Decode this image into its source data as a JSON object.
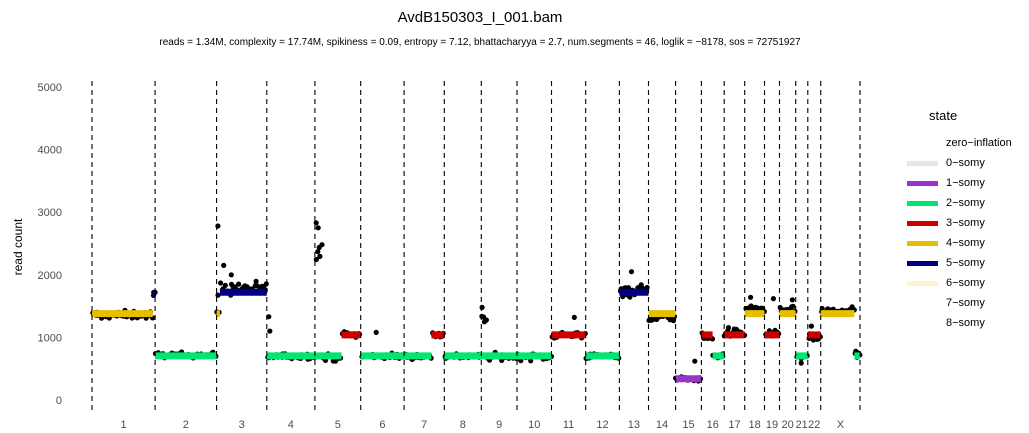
{
  "chart_data": {
    "type": "scatter",
    "title": "AvdB150303_I_001.bam",
    "subtitle": "reads = 1.34M, complexity = 17.74M,  spikiness = 0.09,  entropy = 7.12,  bhattacharyya = 2.7, num.segments = 46, loglik = −8178, sos = 72751927",
    "xlabel": "",
    "ylabel": "read count",
    "ylim": [
      0,
      5000
    ],
    "yticks": [
      "0",
      "1000",
      "2000",
      "3000",
      "4000",
      "5000"
    ],
    "grid": false,
    "legend_position": "right",
    "chromosomes": [
      {
        "name": "1",
        "start": 0,
        "end": 249
      },
      {
        "name": "2",
        "start": 249,
        "end": 492
      },
      {
        "name": "3",
        "start": 492,
        "end": 690
      },
      {
        "name": "4",
        "start": 690,
        "end": 880
      },
      {
        "name": "5",
        "start": 880,
        "end": 1061
      },
      {
        "name": "6",
        "start": 1061,
        "end": 1232
      },
      {
        "name": "7",
        "start": 1232,
        "end": 1391
      },
      {
        "name": "8",
        "start": 1391,
        "end": 1537
      },
      {
        "name": "9",
        "start": 1537,
        "end": 1678
      },
      {
        "name": "10",
        "start": 1678,
        "end": 1814
      },
      {
        "name": "11",
        "start": 1814,
        "end": 1949
      },
      {
        "name": "12",
        "start": 1949,
        "end": 2082
      },
      {
        "name": "13",
        "start": 2082,
        "end": 2197
      },
      {
        "name": "14",
        "start": 2197,
        "end": 2304
      },
      {
        "name": "15",
        "start": 2304,
        "end": 2406
      },
      {
        "name": "16",
        "start": 2406,
        "end": 2496
      },
      {
        "name": "17",
        "start": 2496,
        "end": 2577
      },
      {
        "name": "18",
        "start": 2577,
        "end": 2655
      },
      {
        "name": "19",
        "start": 2655,
        "end": 2714
      },
      {
        "name": "20",
        "start": 2714,
        "end": 2778
      },
      {
        "name": "21",
        "start": 2778,
        "end": 2826
      },
      {
        "name": "22",
        "start": 2826,
        "end": 2877
      },
      {
        "name": "X",
        "start": 2877,
        "end": 3032
      }
    ],
    "legend": {
      "title": "state",
      "items": [
        {
          "label": "zero−inflation",
          "color": null
        },
        {
          "label": "0−somy",
          "color": "#e6e6e6"
        },
        {
          "label": "1−somy",
          "color": "#9933cc"
        },
        {
          "label": "2−somy",
          "color": "#00e673"
        },
        {
          "label": "3−somy",
          "color": "#cc0000"
        },
        {
          "label": "4−somy",
          "color": "#e6bf00"
        },
        {
          "label": "5−somy",
          "color": "#000080"
        },
        {
          "label": "6−somy",
          "color": "#fff5cc"
        },
        {
          "label": "7−somy",
          "color": null
        },
        {
          "label": "8−somy",
          "color": null
        }
      ]
    },
    "segments": [
      {
        "start": 0,
        "end": 240,
        "value": 1380,
        "state": "4-somy",
        "color": "#e6bf00"
      },
      {
        "start": 240,
        "end": 249,
        "value": 1700,
        "state": "5-somy",
        "color": "#000080"
      },
      {
        "start": 249,
        "end": 492,
        "value": 705,
        "state": "2-somy",
        "color": "#00e673"
      },
      {
        "start": 492,
        "end": 505,
        "value": 1380,
        "state": "4-somy",
        "color": "#e6bf00"
      },
      {
        "start": 505,
        "end": 690,
        "value": 1720,
        "state": "5-somy",
        "color": "#000080"
      },
      {
        "start": 690,
        "end": 880,
        "value": 705,
        "state": "2-somy",
        "color": "#00e673"
      },
      {
        "start": 880,
        "end": 985,
        "value": 705,
        "state": "2-somy",
        "color": "#00e673"
      },
      {
        "start": 985,
        "end": 1061,
        "value": 1040,
        "state": "3-somy",
        "color": "#cc0000"
      },
      {
        "start": 1061,
        "end": 1232,
        "value": 705,
        "state": "2-somy",
        "color": "#00e673"
      },
      {
        "start": 1232,
        "end": 1340,
        "value": 705,
        "state": "2-somy",
        "color": "#00e673"
      },
      {
        "start": 1340,
        "end": 1391,
        "value": 1040,
        "state": "3-somy",
        "color": "#cc0000"
      },
      {
        "start": 1391,
        "end": 1537,
        "value": 705,
        "state": "2-somy",
        "color": "#00e673"
      },
      {
        "start": 1537,
        "end": 1678,
        "value": 705,
        "state": "2-somy",
        "color": "#00e673"
      },
      {
        "start": 1678,
        "end": 1814,
        "value": 705,
        "state": "2-somy",
        "color": "#00e673"
      },
      {
        "start": 1814,
        "end": 1949,
        "value": 1040,
        "state": "3-somy",
        "color": "#cc0000"
      },
      {
        "start": 1949,
        "end": 2082,
        "value": 705,
        "state": "2-somy",
        "color": "#00e673"
      },
      {
        "start": 2082,
        "end": 2197,
        "value": 1720,
        "state": "5-somy",
        "color": "#000080"
      },
      {
        "start": 2197,
        "end": 2304,
        "value": 1380,
        "state": "4-somy",
        "color": "#e6bf00"
      },
      {
        "start": 2304,
        "end": 2406,
        "value": 340,
        "state": "1-somy",
        "color": "#9933cc"
      },
      {
        "start": 2406,
        "end": 2450,
        "value": 1040,
        "state": "3-somy",
        "color": "#cc0000"
      },
      {
        "start": 2450,
        "end": 2496,
        "value": 705,
        "state": "2-somy",
        "color": "#00e673"
      },
      {
        "start": 2496,
        "end": 2577,
        "value": 1040,
        "state": "3-somy",
        "color": "#cc0000"
      },
      {
        "start": 2577,
        "end": 2655,
        "value": 1380,
        "state": "4-somy",
        "color": "#e6bf00"
      },
      {
        "start": 2655,
        "end": 2714,
        "value": 1040,
        "state": "3-somy",
        "color": "#cc0000"
      },
      {
        "start": 2714,
        "end": 2778,
        "value": 1380,
        "state": "4-somy",
        "color": "#e6bf00"
      },
      {
        "start": 2778,
        "end": 2826,
        "value": 705,
        "state": "2-somy",
        "color": "#00e673"
      },
      {
        "start": 2826,
        "end": 2877,
        "value": 1040,
        "state": "3-somy",
        "color": "#cc0000"
      },
      {
        "start": 2877,
        "end": 3010,
        "value": 1380,
        "state": "4-somy",
        "color": "#e6bf00"
      },
      {
        "start": 3010,
        "end": 3032,
        "value": 705,
        "state": "2-somy",
        "color": "#00e673"
      }
    ],
    "bins": [
      {
        "start": 0,
        "end": 240,
        "mean": 1360,
        "spread": 70
      },
      {
        "start": 240,
        "end": 249,
        "mean": 1680,
        "spread": 60
      },
      {
        "start": 249,
        "end": 492,
        "mean": 720,
        "spread": 45
      },
      {
        "start": 492,
        "end": 505,
        "mean": 1500,
        "spread": 500
      },
      {
        "start": 505,
        "end": 690,
        "mean": 1780,
        "spread": 110
      },
      {
        "start": 690,
        "end": 880,
        "mean": 700,
        "spread": 50
      },
      {
        "start": 880,
        "end": 910,
        "mean": 2400,
        "spread": 150
      },
      {
        "start": 910,
        "end": 985,
        "mean": 680,
        "spread": 60
      },
      {
        "start": 985,
        "end": 1061,
        "mean": 1040,
        "spread": 55
      },
      {
        "start": 1061,
        "end": 1232,
        "mean": 700,
        "spread": 50
      },
      {
        "start": 1232,
        "end": 1340,
        "mean": 700,
        "spread": 50
      },
      {
        "start": 1340,
        "end": 1391,
        "mean": 1040,
        "spread": 60
      },
      {
        "start": 1391,
        "end": 1537,
        "mean": 700,
        "spread": 50
      },
      {
        "start": 1537,
        "end": 1557,
        "mean": 1280,
        "spread": 90
      },
      {
        "start": 1557,
        "end": 1678,
        "mean": 690,
        "spread": 60
      },
      {
        "start": 1678,
        "end": 1814,
        "mean": 690,
        "spread": 55
      },
      {
        "start": 1814,
        "end": 1949,
        "mean": 1040,
        "spread": 70
      },
      {
        "start": 1949,
        "end": 2082,
        "mean": 700,
        "spread": 45
      },
      {
        "start": 2082,
        "end": 2197,
        "mean": 1750,
        "spread": 110
      },
      {
        "start": 2197,
        "end": 2304,
        "mean": 1320,
        "spread": 70
      },
      {
        "start": 2304,
        "end": 2406,
        "mean": 340,
        "spread": 40
      },
      {
        "start": 2406,
        "end": 2450,
        "mean": 1000,
        "spread": 70
      },
      {
        "start": 2450,
        "end": 2496,
        "mean": 700,
        "spread": 40
      },
      {
        "start": 2496,
        "end": 2577,
        "mean": 1080,
        "spread": 80
      },
      {
        "start": 2577,
        "end": 2655,
        "mean": 1450,
        "spread": 90
      },
      {
        "start": 2655,
        "end": 2714,
        "mean": 1050,
        "spread": 60
      },
      {
        "start": 2714,
        "end": 2778,
        "mean": 1430,
        "spread": 70
      },
      {
        "start": 2778,
        "end": 2826,
        "mean": 690,
        "spread": 45
      },
      {
        "start": 2826,
        "end": 2877,
        "mean": 990,
        "spread": 60
      },
      {
        "start": 2877,
        "end": 3010,
        "mean": 1420,
        "spread": 60
      },
      {
        "start": 3010,
        "end": 3032,
        "mean": 760,
        "spread": 60
      }
    ],
    "outliers": [
      {
        "x": 497,
        "y": 2780
      },
      {
        "x": 520,
        "y": 2150
      },
      {
        "x": 550,
        "y": 2000
      },
      {
        "x": 698,
        "y": 1330
      },
      {
        "x": 702,
        "y": 1100
      },
      {
        "x": 885,
        "y": 2830
      },
      {
        "x": 893,
        "y": 2750
      },
      {
        "x": 1122,
        "y": 1080
      },
      {
        "x": 1540,
        "y": 1480
      },
      {
        "x": 1904,
        "y": 1320
      },
      {
        "x": 2130,
        "y": 2050
      },
      {
        "x": 2310,
        "y": 320
      },
      {
        "x": 2380,
        "y": 620
      },
      {
        "x": 2600,
        "y": 1640
      },
      {
        "x": 2690,
        "y": 1620
      },
      {
        "x": 2765,
        "y": 1600
      },
      {
        "x": 2800,
        "y": 590
      },
      {
        "x": 2840,
        "y": 1180
      },
      {
        "x": 3020,
        "y": 680
      }
    ]
  }
}
